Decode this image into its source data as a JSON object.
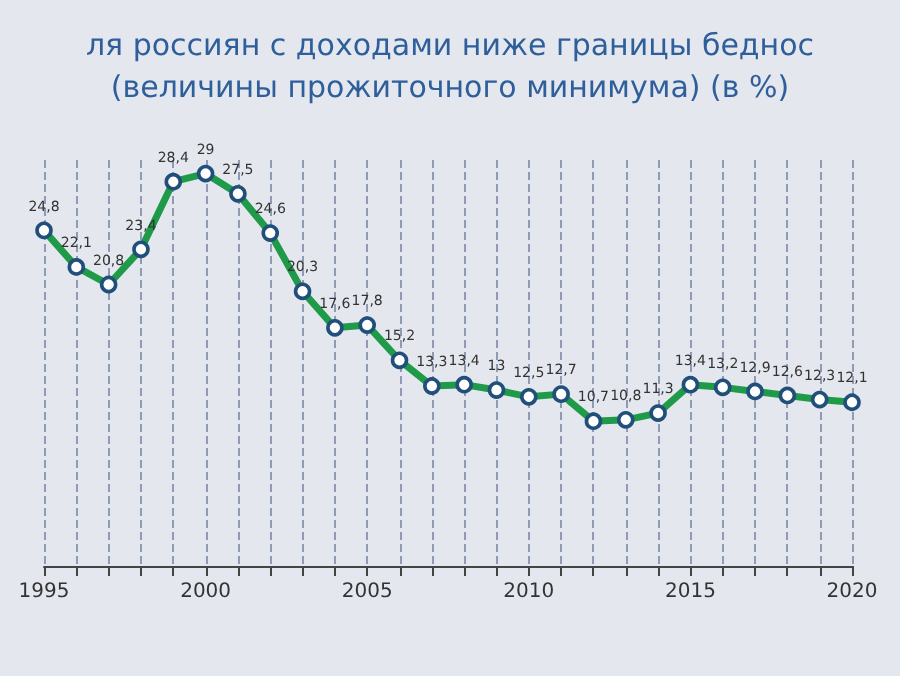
{
  "chart_data": {
    "type": "line",
    "title": "ля россиян с доходами ниже границы беднос",
    "subtitle": "(величины прожиточного минимума) (в %)",
    "x": [
      1995,
      1996,
      1997,
      1998,
      1999,
      2000,
      2001,
      2002,
      2003,
      2004,
      2005,
      2006,
      2007,
      2008,
      2009,
      2010,
      2011,
      2012,
      2013,
      2014,
      2015,
      2016,
      2017,
      2018,
      2019,
      2020
    ],
    "series": [
      {
        "color": "#1e9a48",
        "values": [
          24.8,
          22.1,
          20.8,
          23.4,
          28.4,
          29,
          27.5,
          24.6,
          20.3,
          17.6,
          17.8,
          15.2,
          13.3,
          13.4,
          13,
          12.5,
          12.7,
          10.7,
          10.8,
          11.3,
          13.4,
          13.2,
          12.9,
          12.6,
          12.3,
          12.1
        ],
        "value_labels": [
          "24,8",
          "22,1",
          "20,8",
          "23,4",
          "28,4",
          "29",
          "27,5",
          "24,6",
          "20,3",
          "17,6",
          "17,8",
          "15,2",
          "13,3",
          "13,4",
          "13",
          "12,5",
          "12,7",
          "10,7",
          "10,8",
          "11,3",
          "13,4",
          "13,2",
          "12,9",
          "12,6",
          "12,3",
          "12,1"
        ]
      }
    ],
    "xlim": [
      1995,
      2020
    ],
    "xticks": [
      1995,
      {
        "value": 1996,
        "label": null
      },
      {
        "value": 1997,
        "label": null
      },
      {
        "value": 1998,
        "label": null
      },
      {
        "value": 1999,
        "label": null
      },
      2000,
      {
        "value": 2001,
        "label": null
      },
      {
        "value": 2002,
        "label": null
      },
      {
        "value": 2003,
        "label": null
      },
      {
        "value": 2004,
        "label": null
      },
      2005,
      {
        "value": 2006,
        "label": null
      },
      {
        "value": 2007,
        "label": null
      },
      {
        "value": 2008,
        "label": null
      },
      {
        "value": 2009,
        "label": null
      },
      2010,
      {
        "value": 2011,
        "label": null
      },
      {
        "value": 2012,
        "label": null
      },
      {
        "value": 2013,
        "label": null
      },
      {
        "value": 2014,
        "label": null
      },
      2015,
      {
        "value": 2016,
        "label": null
      },
      {
        "value": 2017,
        "label": null
      },
      {
        "value": 2018,
        "label": null
      },
      {
        "value": 2019,
        "label": null
      },
      2020
    ],
    "grid": "x",
    "marker": "circle",
    "line_style": "solid",
    "tick_labels": "x"
  }
}
